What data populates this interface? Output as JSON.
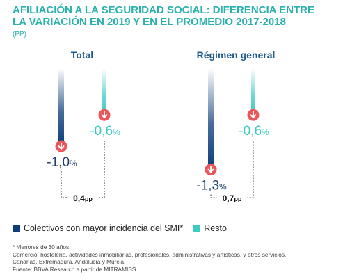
{
  "title_line1": "AFILIACIÓN A LA SEGURIDAD SOCIAL: DIFERENCIA ENTRE",
  "title_line2": "LA VARIACIÓN EN 2019 Y EN EL PROMEDIO 2017-2018",
  "unit": "(PP)",
  "legend": [
    {
      "label": "Colectivos con mayor incidencia del SMI*",
      "color": "#0b3d7a"
    },
    {
      "label": "Resto",
      "color": "#3ec9c5"
    }
  ],
  "notes": [
    "* Menores de 30 años.",
    "Comercio, hostelería, actividades inmobiliarias, profesionales, administrativas y artísticas, y otros servicios.",
    "Canarias, Extremadura, Andalucía y Murcia.",
    "Fuente: BBVA Research a partir de MITRAMISS"
  ],
  "colors": {
    "dark": "#0b3d7a",
    "light": "#3ec9c5",
    "arrow": "#e8575a",
    "title": "#2ab1ad"
  },
  "chart_data": {
    "type": "bar",
    "categories": [
      "Total",
      "Régimen general"
    ],
    "series": [
      {
        "name": "Colectivos con mayor incidencia del SMI*",
        "values": [
          -1.0,
          -1.3
        ],
        "labels": [
          "-1,0",
          "-1,3"
        ]
      },
      {
        "name": "Resto",
        "values": [
          -0.6,
          -0.6
        ],
        "labels": [
          "-0,6",
          "-0,6"
        ]
      }
    ],
    "value_suffix": "%",
    "differences": [
      {
        "value": 0.4,
        "label": "0,4",
        "unit": "pp"
      },
      {
        "value": 0.7,
        "label": "0,7",
        "unit": "pp"
      }
    ]
  }
}
